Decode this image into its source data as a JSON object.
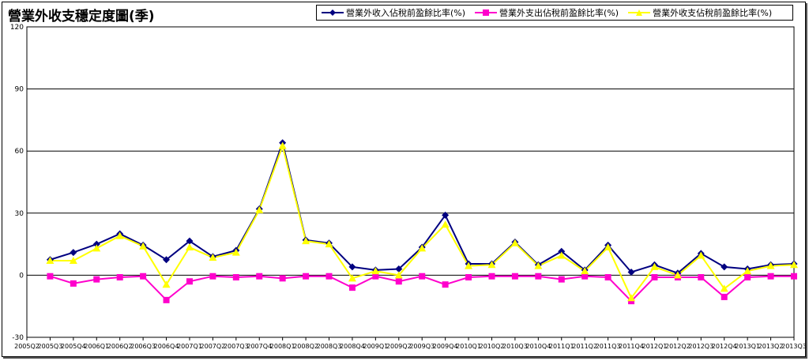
{
  "chart_data": {
    "type": "line",
    "title": "營業外收支穩定度圖(季)",
    "xlabel": "",
    "ylabel": "",
    "ylim": [
      -30,
      120
    ],
    "yticks": [
      -30,
      0,
      30,
      60,
      90,
      120
    ],
    "grid": true,
    "legend_position": "top-right",
    "categories": [
      "2005Q2",
      "2005Q3",
      "2005Q4",
      "2006Q1",
      "2006Q2",
      "2006Q3",
      "2006Q4",
      "2007Q1",
      "2007Q2",
      "2007Q3",
      "2007Q4",
      "2008Q1",
      "2008Q2",
      "2008Q3",
      "2008Q4",
      "2009Q1",
      "2009Q2",
      "2009Q3",
      "2009Q4",
      "2010Q1",
      "2010Q2",
      "2010Q3",
      "2010Q4",
      "2011Q1",
      "2011Q2",
      "2011Q3",
      "2011Q4",
      "2012Q1",
      "2012Q2",
      "2012Q3",
      "2012Q4",
      "2013Q1",
      "2013Q2",
      "2013Q3"
    ],
    "series": [
      {
        "name": "營業外收入佔稅前盈餘比率(%)",
        "color": "#000080",
        "marker": "diamond",
        "values": [
          null,
          7.5,
          11,
          15,
          20,
          14.5,
          7.5,
          16.5,
          9,
          12,
          32,
          64,
          17,
          15.5,
          4,
          2.5,
          3,
          13.5,
          29,
          5.5,
          5.5,
          16,
          5,
          11.5,
          2.5,
          14.5,
          1.5,
          5,
          1,
          10.5,
          4,
          3,
          5,
          5.5
        ]
      },
      {
        "name": "營業外支出佔稅前盈餘比率(%)",
        "color": "#ff00cc",
        "marker": "square",
        "values": [
          null,
          -0.5,
          -4,
          -2,
          -1,
          -0.5,
          -12,
          -3,
          -0.5,
          -1,
          -0.5,
          -1.5,
          -0.5,
          -0.5,
          -6,
          -0.5,
          -3,
          -0.5,
          -4.5,
          -1,
          -0.5,
          -0.5,
          -0.5,
          -2,
          -0.5,
          -1,
          -12.5,
          -1,
          -1,
          -1,
          -10.5,
          -1,
          -0.5,
          -0.5
        ]
      },
      {
        "name": "營業外收支佔稅前盈餘比率(%)",
        "color": "#ffff00",
        "marker": "triangle",
        "values": [
          null,
          7,
          7,
          13,
          19,
          14,
          -4.5,
          13.5,
          8.5,
          11,
          31.5,
          62.5,
          16.5,
          15,
          -1.5,
          2,
          0,
          13,
          24.5,
          4.5,
          5,
          15.5,
          4.5,
          9.5,
          2,
          13.5,
          -11,
          4,
          0,
          9.5,
          -6.5,
          2,
          4.5,
          5
        ]
      }
    ]
  }
}
